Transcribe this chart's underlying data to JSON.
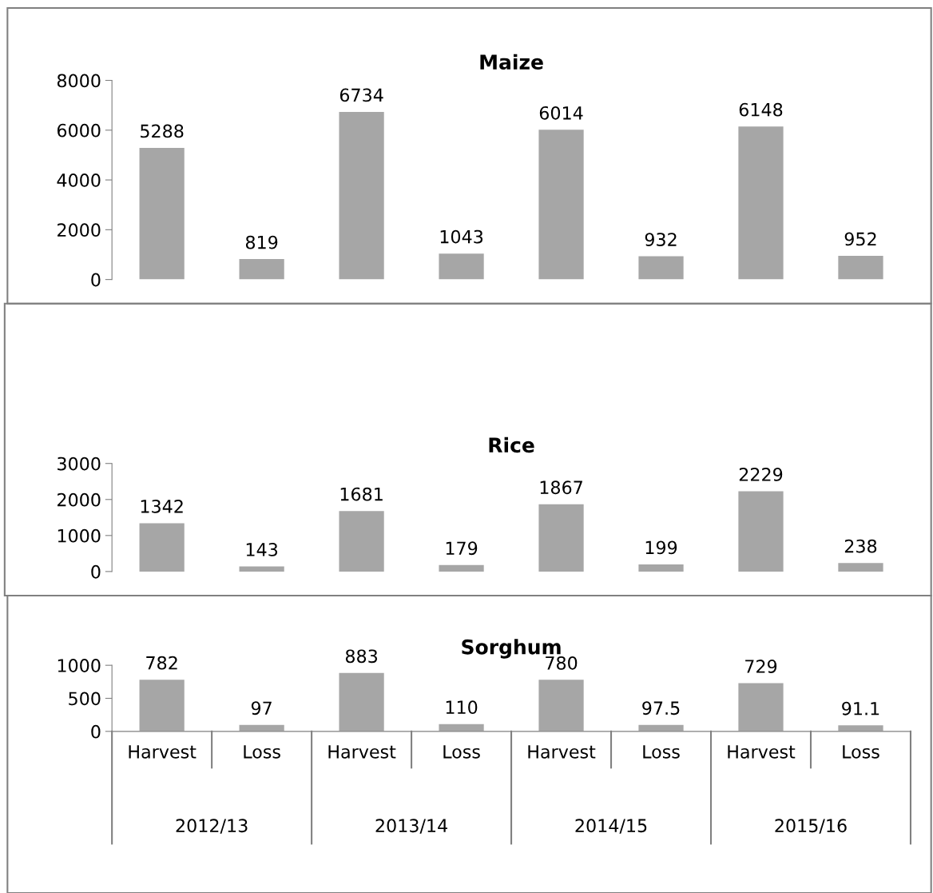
{
  "chart_data": [
    {
      "type": "bar",
      "title": "Maize",
      "categories": [
        null,
        null,
        null,
        null,
        null,
        null,
        null,
        null
      ],
      "values": [
        5288,
        819,
        6734,
        1043,
        6014,
        932,
        6148,
        952
      ],
      "color": "#a6a6a6",
      "ylim": [
        0,
        8000
      ],
      "yticks": [
        0,
        2000,
        4000,
        6000,
        8000
      ],
      "data_labels": true,
      "tick_labels": "y",
      "grid": false,
      "legend": false
    },
    {
      "type": "bar",
      "title": "Rice",
      "categories": [
        null,
        null,
        null,
        null,
        null,
        null,
        null,
        null
      ],
      "values": [
        1342,
        143,
        1681,
        179,
        1867,
        199,
        2229,
        238
      ],
      "color": "#a6a6a6",
      "ylim": [
        0,
        3000
      ],
      "yticks": [
        0,
        1000,
        2000,
        3000
      ],
      "data_labels": true,
      "tick_labels": "y",
      "grid": false,
      "legend": false
    },
    {
      "type": "bar",
      "title": "Sorghum",
      "categories": [
        "Harvest",
        "Loss",
        "Harvest",
        "Loss",
        "Harvest",
        "Loss",
        "Harvest",
        "Loss"
      ],
      "values": [
        782,
        97,
        883,
        110,
        780,
        97.5,
        729,
        91.1
      ],
      "color": "#a6a6a6",
      "ylim": [
        0,
        1000
      ],
      "yticks": [
        0,
        500,
        1000
      ],
      "data_labels": true,
      "grid": false,
      "legend": false,
      "annotations": [
        "2012/13",
        "2013/14",
        "2014/15",
        "2015/16"
      ]
    }
  ]
}
